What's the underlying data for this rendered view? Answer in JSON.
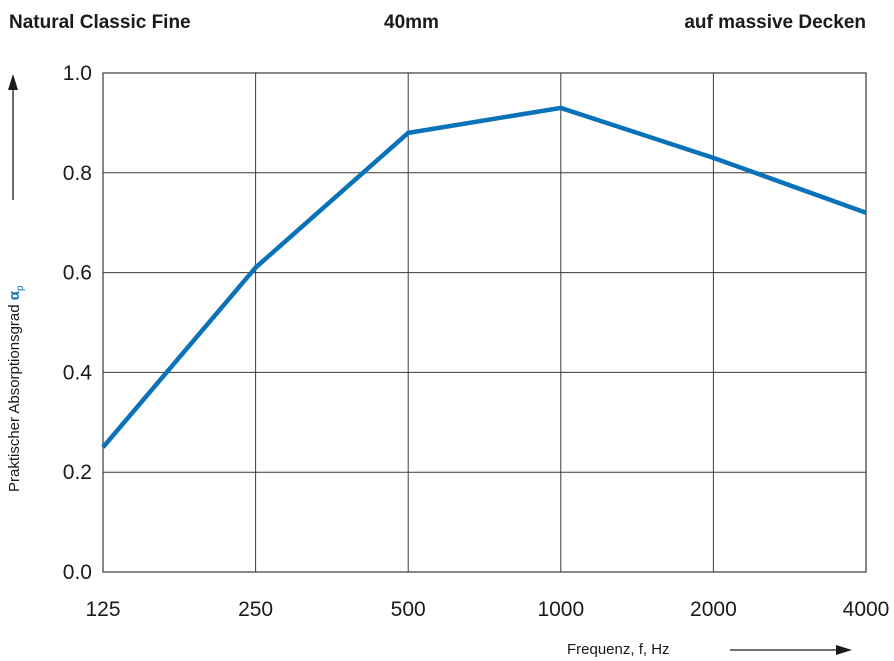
{
  "header": {
    "left": "Natural Classic Fine",
    "middle": "40mm",
    "right": "auf massive Decken"
  },
  "chart_data": {
    "type": "line",
    "x": [
      "125",
      "250",
      "500",
      "1000",
      "2000",
      "4000"
    ],
    "series": [
      {
        "values": [
          0.25,
          0.61,
          0.88,
          0.93,
          0.83,
          0.72
        ]
      }
    ],
    "ylim": [
      0,
      1
    ],
    "yticks": [
      "0.0",
      "0.2",
      "0.4",
      "0.6",
      "0.8",
      "1.0"
    ],
    "xlabel": "Frequenz, f, Hz",
    "ylabel_main": "Praktischer Absorptionsgrad ",
    "ylabel_symbol": "α",
    "ylabel_subscript": "p",
    "grid": true,
    "line_color": "#0a72b9"
  }
}
